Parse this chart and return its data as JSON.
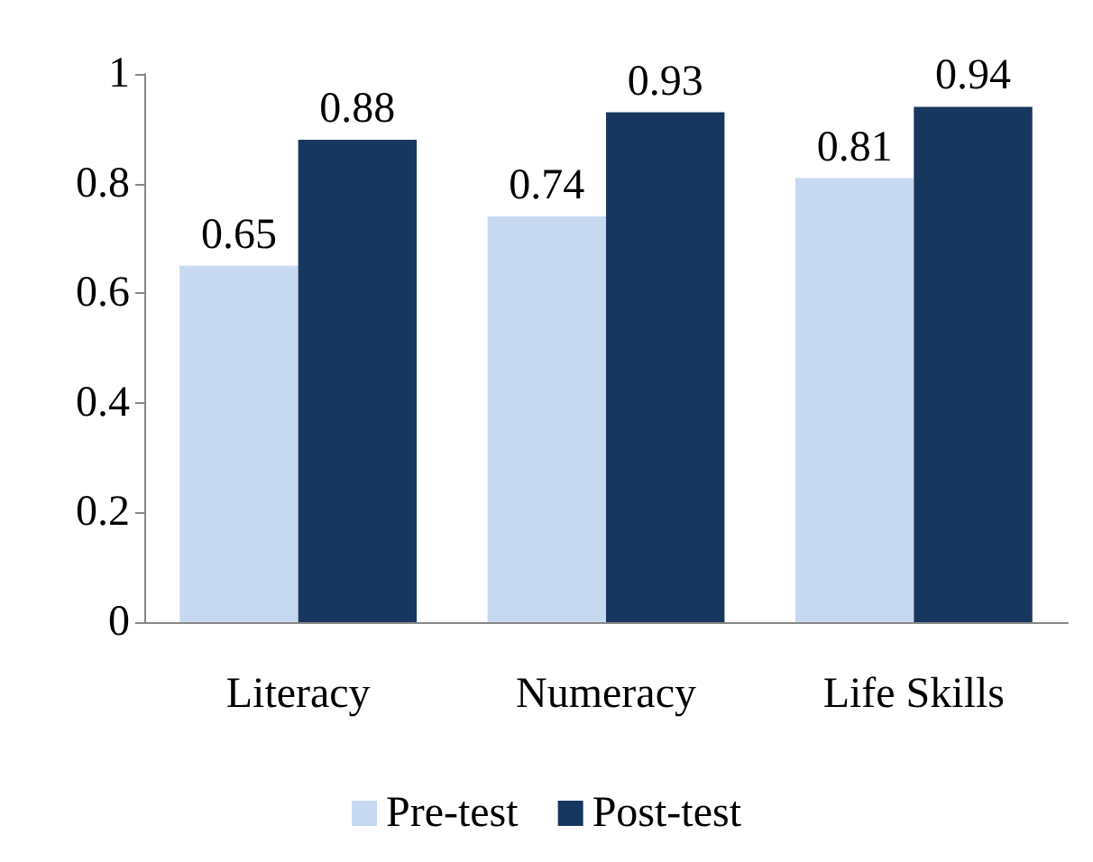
{
  "chart_data": {
    "type": "bar",
    "categories": [
      "Literacy",
      "Numeracy",
      "Life Skills"
    ],
    "series": [
      {
        "name": "Pre-test",
        "color": "#c6d9f1",
        "values": [
          0.65,
          0.74,
          0.81
        ]
      },
      {
        "name": "Post-test",
        "color": "#17375e",
        "values": [
          0.88,
          0.93,
          0.94
        ]
      }
    ],
    "ylim": [
      0,
      1
    ],
    "yticks": [
      0,
      0.2,
      0.4,
      0.6,
      0.8,
      1
    ],
    "grid": false,
    "legend": "bottom",
    "data_labels": true
  }
}
